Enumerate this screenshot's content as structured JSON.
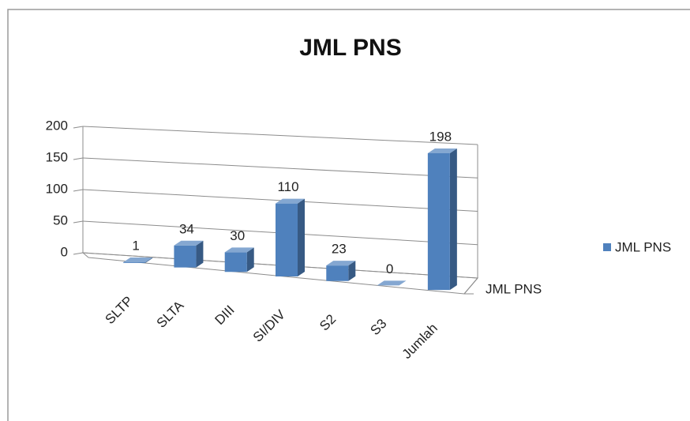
{
  "chart_data": {
    "type": "bar3d",
    "title": "JML PNS",
    "categories": [
      "SLTP",
      "SLTA",
      "DIII",
      "SI/DIV",
      "S2",
      "S3",
      "Jumlah"
    ],
    "series": [
      {
        "name": "JML PNS",
        "color": "#4f81bd",
        "values": [
          1,
          34,
          30,
          110,
          23,
          0,
          198
        ]
      }
    ],
    "ylim": [
      0,
      200
    ],
    "yticks": [
      0,
      50,
      100,
      150,
      200
    ],
    "grid": true,
    "legend": "right"
  }
}
